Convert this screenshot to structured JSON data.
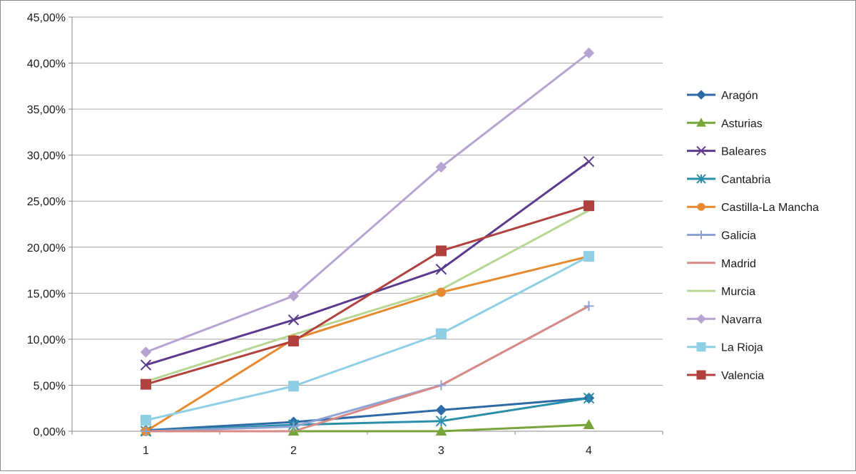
{
  "chart_data": {
    "type": "line",
    "categories": [
      "1",
      "2",
      "3",
      "4"
    ],
    "ylim": [
      0,
      45
    ],
    "yticks": [
      "0,00%",
      "5,00%",
      "10,00%",
      "15,00%",
      "20,00%",
      "25,00%",
      "30,00%",
      "35,00%",
      "40,00%",
      "45,00%"
    ],
    "ytick_values": [
      0,
      5,
      10,
      15,
      20,
      25,
      30,
      35,
      40,
      45
    ],
    "grid": "horizontal",
    "legend_position": "right",
    "series": [
      {
        "name": "Aragón",
        "color": "#2e6aa8",
        "marker": "diamond",
        "values": [
          0.1,
          1.0,
          2.3,
          3.6
        ]
      },
      {
        "name": "Asturias",
        "color": "#77a53a",
        "marker": "triangle",
        "values": [
          0.0,
          0.0,
          0.0,
          0.7
        ]
      },
      {
        "name": "Baleares",
        "color": "#5b3a8e",
        "marker": "x",
        "values": [
          7.2,
          12.1,
          17.6,
          29.3
        ]
      },
      {
        "name": "Cantabria",
        "color": "#2a8fa8",
        "marker": "asterisk",
        "values": [
          0.0,
          0.7,
          1.1,
          3.6
        ]
      },
      {
        "name": "Castilla-La Mancha",
        "color": "#e58a2e",
        "marker": "circle",
        "values": [
          0.0,
          10.0,
          15.1,
          19.0
        ]
      },
      {
        "name": "Galicia",
        "color": "#8ea2d4",
        "marker": "plus",
        "values": [
          0.0,
          0.5,
          5.0,
          13.6
        ]
      },
      {
        "name": "Madrid",
        "color": "#d98a86",
        "marker": "none",
        "values": [
          0.0,
          0.0,
          5.0,
          13.6
        ]
      },
      {
        "name": "Murcia",
        "color": "#b7d593",
        "marker": "none",
        "values": [
          5.4,
          10.5,
          15.4,
          24.0
        ]
      },
      {
        "name": "Navarra",
        "color": "#b6a3d2",
        "marker": "diamond",
        "values": [
          8.6,
          14.7,
          28.7,
          41.1
        ]
      },
      {
        "name": "La Rioja",
        "color": "#8ecfe6",
        "marker": "square",
        "values": [
          1.2,
          4.9,
          10.6,
          19.0
        ]
      },
      {
        "name": "Valencia",
        "color": "#b0413e",
        "marker": "square",
        "values": [
          5.1,
          9.8,
          19.6,
          24.5
        ]
      }
    ]
  }
}
